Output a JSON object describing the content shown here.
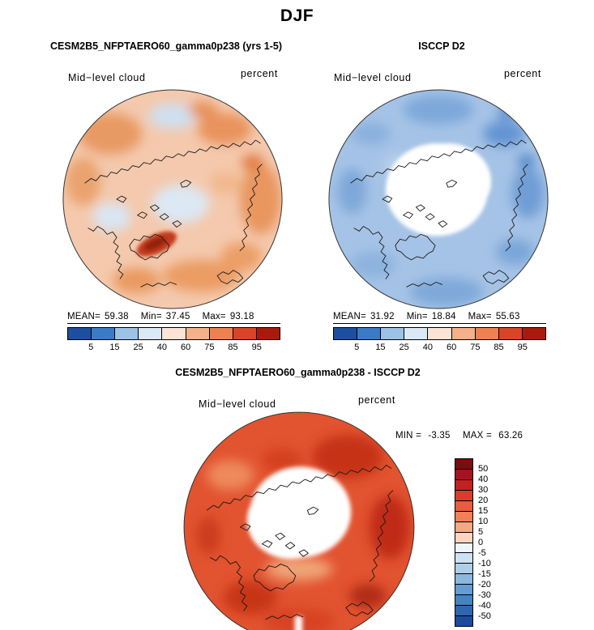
{
  "figure_title": "DJF",
  "panels": {
    "model": {
      "title": "CESM2B5_NFPTAERO60_gamma0p238 (yrs 1-5)",
      "field_label": "Mid−level cloud",
      "units_label": "percent",
      "stats": {
        "mean_label": "MEAN=",
        "mean": "59.38",
        "min_label": "Min=",
        "min": "37.45",
        "max_label": "Max=",
        "max": "93.18"
      }
    },
    "obs": {
      "title": "ISCCP D2",
      "field_label": "Mid−level cloud",
      "units_label": "percent",
      "stats": {
        "mean_label": "MEAN=",
        "mean": "31.92",
        "min_label": "Min=",
        "min": "18.84",
        "max_label": "Max=",
        "max": "55.63"
      }
    },
    "diff": {
      "title": "CESM2B5_NFPTAERO60_gamma0p238 - ISCCP D2",
      "field_label": "Mid−level cloud",
      "units_label": "percent",
      "min_label": "MIN =",
      "min": "-3.35",
      "max_label": "MAX =",
      "max": "63.26"
    }
  },
  "colorbars": {
    "cloud": {
      "ticks": [
        "5",
        "15",
        "25",
        "40",
        "60",
        "75",
        "85",
        "95"
      ],
      "colors": [
        "#1c4fa0",
        "#3a7bc8",
        "#9cc3e6",
        "#dbe9f6",
        "#fbe3d6",
        "#f5b189",
        "#ee8150",
        "#d94427",
        "#a81b0c"
      ]
    },
    "diff": {
      "labels": [
        "50",
        "40",
        "30",
        "20",
        "15",
        "10",
        "5",
        "0",
        "-5",
        "-10",
        "-15",
        "-20",
        "-30",
        "-40",
        "-50"
      ],
      "colors": [
        "#7f0a10",
        "#a51322",
        "#c22121",
        "#dc3b2c",
        "#e85c40",
        "#f08058",
        "#f5a886",
        "#fbd4c2",
        "#eef4fb",
        "#cfe2f3",
        "#aecfe8",
        "#8ab8de",
        "#659dd2",
        "#4682c4",
        "#2f66b0",
        "#1d4a9c"
      ]
    }
  },
  "chart_data": [
    {
      "type": "heatmap",
      "title": "CESM2B5_NFPTAERO60_gamma0p238 (yrs 1-5)",
      "season": "DJF",
      "variable": "Mid-level cloud",
      "units": "percent",
      "projection": "north-polar-stereographic",
      "stats": {
        "mean": 59.38,
        "min": 37.45,
        "max": 93.18
      },
      "contour_levels": [
        5,
        15,
        25,
        40,
        60,
        75,
        85,
        95
      ],
      "palette": [
        "#1c4fa0",
        "#3a7bc8",
        "#9cc3e6",
        "#dbe9f6",
        "#fbe3d6",
        "#f5b189",
        "#ee8150",
        "#d94427",
        "#a81b0c"
      ],
      "legend_position": "below"
    },
    {
      "type": "heatmap",
      "title": "ISCCP D2",
      "season": "DJF",
      "variable": "Mid-level cloud",
      "units": "percent",
      "projection": "north-polar-stereographic",
      "stats": {
        "mean": 31.92,
        "min": 18.84,
        "max": 55.63
      },
      "contour_levels": [
        5,
        15,
        25,
        40,
        60,
        75,
        85,
        95
      ],
      "palette": [
        "#1c4fa0",
        "#3a7bc8",
        "#9cc3e6",
        "#dbe9f6",
        "#fbe3d6",
        "#f5b189",
        "#ee8150",
        "#d94427",
        "#a81b0c"
      ],
      "legend_position": "below"
    },
    {
      "type": "heatmap",
      "title": "CESM2B5_NFPTAERO60_gamma0p238 - ISCCP D2",
      "season": "DJF",
      "variable": "Mid-level cloud (difference)",
      "units": "percent",
      "projection": "north-polar-stereographic",
      "stats": {
        "min": -3.35,
        "max": 63.26
      },
      "contour_levels": [
        -50,
        -40,
        -30,
        -20,
        -15,
        -10,
        -5,
        0,
        5,
        10,
        15,
        20,
        30,
        40,
        50
      ],
      "palette": [
        "#7f0a10",
        "#a51322",
        "#c22121",
        "#dc3b2c",
        "#e85c40",
        "#f08058",
        "#f5a886",
        "#fbd4c2",
        "#eef4fb",
        "#cfe2f3",
        "#aecfe8",
        "#8ab8de",
        "#659dd2",
        "#4682c4",
        "#2f66b0",
        "#1d4a9c"
      ],
      "legend_position": "right"
    }
  ]
}
